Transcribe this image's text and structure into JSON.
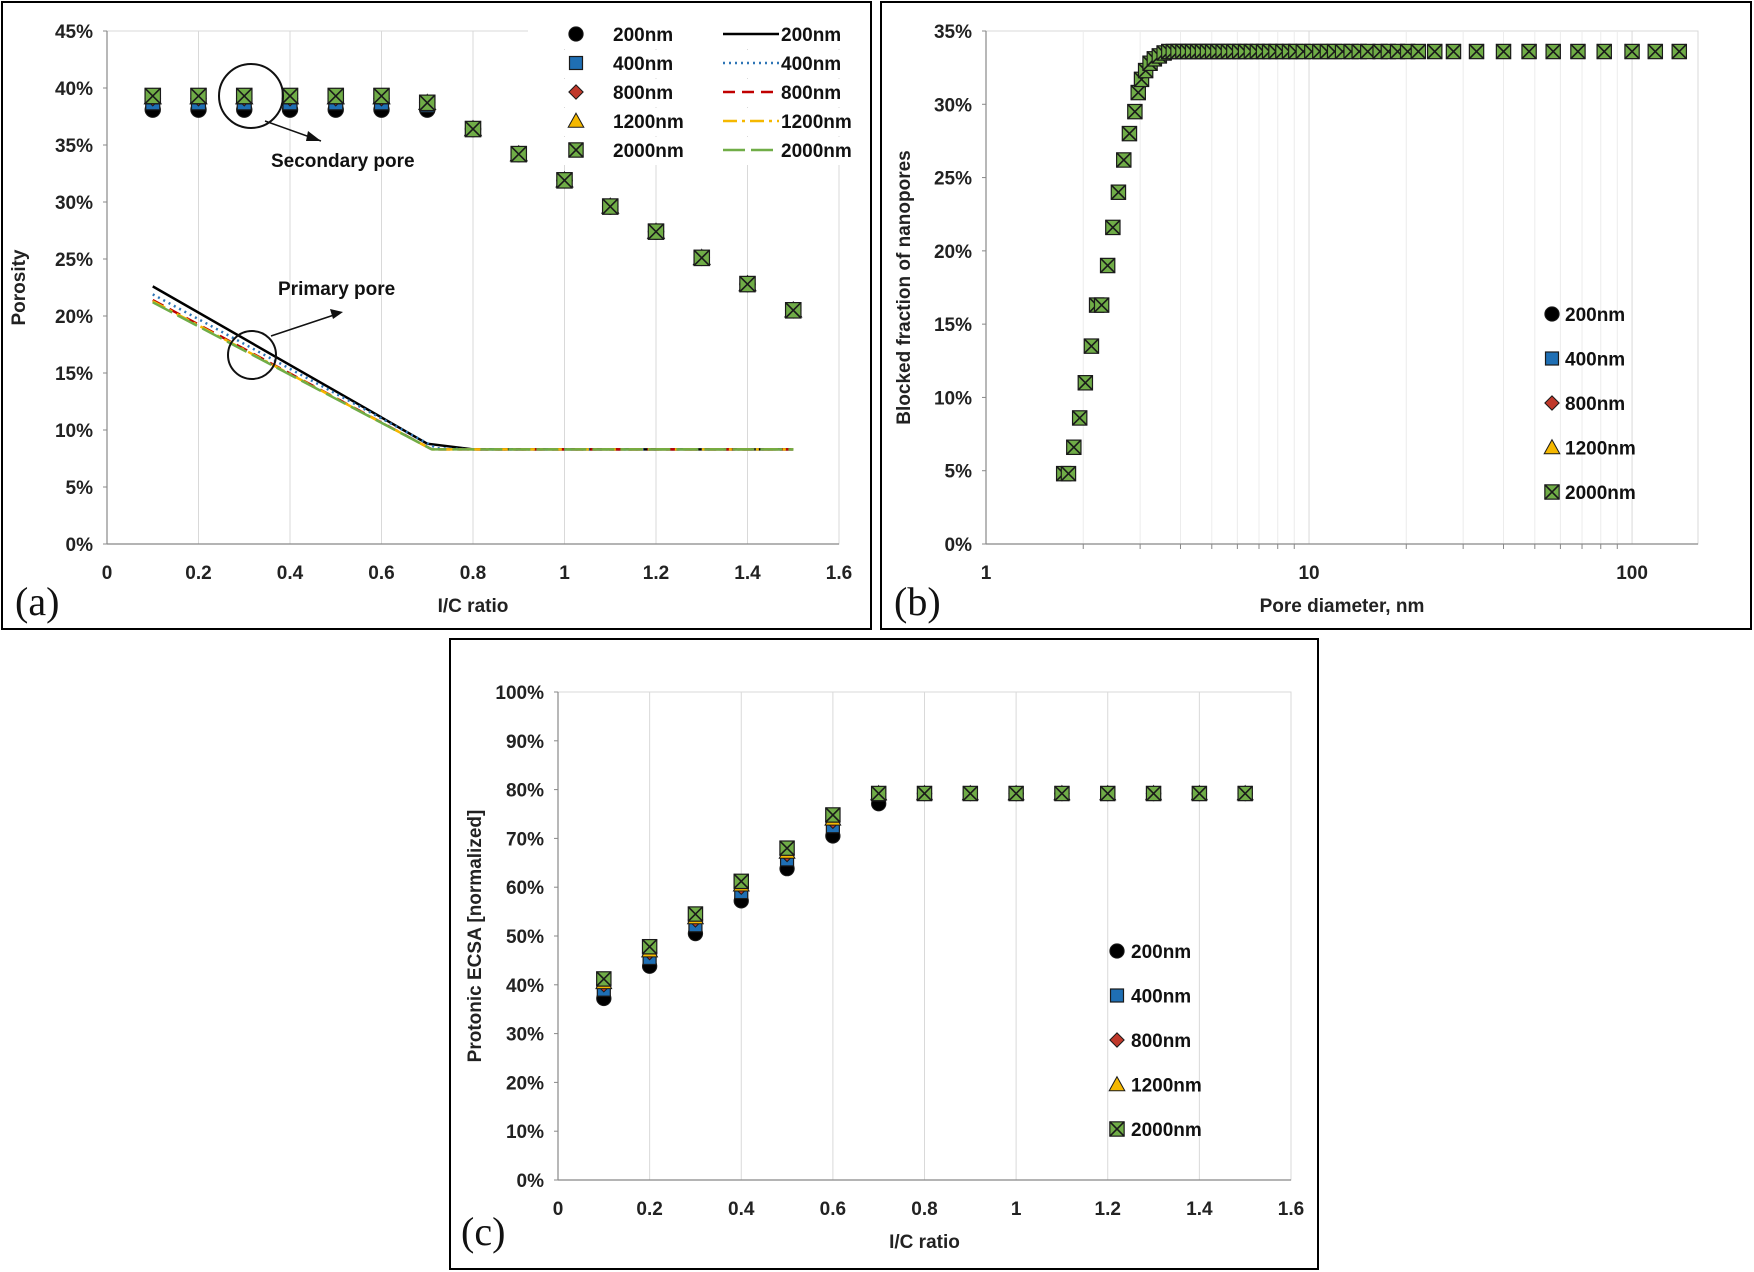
{
  "series_styles": {
    "200nm": {
      "marker": "circle",
      "fill": "#000000",
      "line_color": "#000000",
      "dash": ""
    },
    "400nm": {
      "marker": "square",
      "fill": "#1f6fb4",
      "line_color": "#2e75b6",
      "dash": "2,4"
    },
    "800nm": {
      "marker": "diamond",
      "fill": "#c0392b",
      "line_color": "#c00000",
      "dash": "12,7"
    },
    "1200nm": {
      "marker": "triangle",
      "fill": "#f5b800",
      "line_color": "#f5b800",
      "dash": "14,5,3,5"
    },
    "2000nm": {
      "marker": "xsquare",
      "fill": "#70ad47",
      "line_color": "#70ad47",
      "dash": "22,6"
    }
  },
  "chart_data": [
    {
      "id": "a",
      "type": "scatter",
      "panel_label": "(a)",
      "xlabel": "I/C ratio",
      "ylabel": "Porosity",
      "xlim": [
        0,
        1.6
      ],
      "ylim": [
        0,
        0.45
      ],
      "x_ticks": [
        "0",
        "0.2",
        "0.4",
        "0.6",
        "0.8",
        "1",
        "1.2",
        "1.4",
        "1.6"
      ],
      "y_ticks": [
        "0%",
        "5%",
        "10%",
        "15%",
        "20%",
        "25%",
        "30%",
        "35%",
        "40%",
        "45%"
      ],
      "grid": "vertical",
      "legend_position": "top-right",
      "annotations": [
        "Secondary pore",
        "Primary pore"
      ],
      "scatter_series": [
        {
          "name": "200nm",
          "x": [
            0.1,
            0.2,
            0.3,
            0.4,
            0.5,
            0.6,
            0.7,
            0.8,
            0.9,
            1.0,
            1.1,
            1.2,
            1.3,
            1.4,
            1.5
          ],
          "y": [
            0.381,
            0.381,
            0.381,
            0.381,
            0.381,
            0.381,
            0.381,
            0.364,
            0.342,
            0.319,
            0.296,
            0.274,
            0.251,
            0.228,
            0.205
          ]
        },
        {
          "name": "400nm",
          "x": [
            0.1,
            0.2,
            0.3,
            0.4,
            0.5,
            0.6,
            0.7,
            0.8,
            0.9,
            1.0,
            1.1,
            1.2,
            1.3,
            1.4,
            1.5
          ],
          "y": [
            0.387,
            0.387,
            0.387,
            0.387,
            0.387,
            0.387,
            0.385,
            0.364,
            0.342,
            0.319,
            0.296,
            0.274,
            0.251,
            0.228,
            0.205
          ]
        },
        {
          "name": "800nm",
          "x": [
            0.1,
            0.2,
            0.3,
            0.4,
            0.5,
            0.6,
            0.7,
            0.8,
            0.9,
            1.0,
            1.1,
            1.2,
            1.3,
            1.4,
            1.5
          ],
          "y": [
            0.391,
            0.391,
            0.391,
            0.391,
            0.391,
            0.391,
            0.387,
            0.364,
            0.342,
            0.319,
            0.296,
            0.274,
            0.251,
            0.228,
            0.205
          ]
        },
        {
          "name": "1200nm",
          "x": [
            0.1,
            0.2,
            0.3,
            0.4,
            0.5,
            0.6,
            0.7,
            0.8,
            0.9,
            1.0,
            1.1,
            1.2,
            1.3,
            1.4,
            1.5
          ],
          "y": [
            0.392,
            0.392,
            0.392,
            0.392,
            0.392,
            0.392,
            0.387,
            0.364,
            0.342,
            0.319,
            0.296,
            0.274,
            0.251,
            0.228,
            0.205
          ]
        },
        {
          "name": "2000nm",
          "x": [
            0.1,
            0.2,
            0.3,
            0.4,
            0.5,
            0.6,
            0.7,
            0.8,
            0.9,
            1.0,
            1.1,
            1.2,
            1.3,
            1.4,
            1.5
          ],
          "y": [
            0.393,
            0.393,
            0.393,
            0.393,
            0.393,
            0.393,
            0.387,
            0.364,
            0.342,
            0.319,
            0.296,
            0.274,
            0.251,
            0.228,
            0.205
          ]
        }
      ],
      "line_series": [
        {
          "name": "200nm",
          "x": [
            0.1,
            0.7,
            0.8,
            1.5
          ],
          "y": [
            0.226,
            0.088,
            0.083,
            0.083
          ]
        },
        {
          "name": "400nm",
          "x": [
            0.1,
            0.72,
            0.8,
            1.5
          ],
          "y": [
            0.219,
            0.084,
            0.083,
            0.083
          ]
        },
        {
          "name": "800nm",
          "x": [
            0.1,
            0.71,
            1.5
          ],
          "y": [
            0.214,
            0.083,
            0.083
          ]
        },
        {
          "name": "1200nm",
          "x": [
            0.1,
            0.71,
            1.5
          ],
          "y": [
            0.213,
            0.083,
            0.083
          ]
        },
        {
          "name": "2000nm",
          "x": [
            0.1,
            0.71,
            1.5
          ],
          "y": [
            0.212,
            0.083,
            0.083
          ]
        }
      ],
      "legend_markers": [
        "200nm",
        "400nm",
        "800nm",
        "1200nm",
        "2000nm"
      ],
      "legend_lines": [
        "200nm",
        "400nm",
        "800nm",
        "1200nm",
        "2000nm"
      ]
    },
    {
      "id": "b",
      "type": "scatter",
      "panel_label": "(b)",
      "xlabel": "Pore diameter, nm",
      "ylabel": "Blocked fraction of nanopores",
      "xscale": "log",
      "xlim": [
        1,
        160
      ],
      "ylim": [
        0,
        0.35
      ],
      "x_ticks": [
        "1",
        "10",
        "100"
      ],
      "y_ticks": [
        "0%",
        "5%",
        "10%",
        "15%",
        "20%",
        "25%",
        "30%",
        "35%"
      ],
      "grid": "vertical",
      "legend_position": "right",
      "legend_markers": [
        "200nm",
        "400nm",
        "800nm",
        "1200nm",
        "2000nm"
      ],
      "x": [
        1.74,
        1.8,
        1.87,
        1.95,
        2.03,
        2.12,
        2.2,
        2.28,
        2.38,
        2.47,
        2.57,
        2.67,
        2.78,
        2.89,
        2.96,
        3.03,
        3.12,
        3.22,
        3.32,
        3.44,
        3.56,
        3.68,
        3.8,
        3.93,
        4.07,
        4.21,
        4.36,
        4.52,
        4.68,
        4.85,
        5.03,
        5.22,
        5.42,
        5.63,
        5.85,
        6.1,
        6.36,
        6.63,
        6.92,
        7.23,
        7.55,
        7.9,
        8.3,
        8.7,
        9.1,
        9.6,
        10.2,
        10.8,
        11.4,
        12.0,
        12.7,
        13.5,
        14.3,
        15.2,
        16.6,
        17.6,
        18.8,
        20.2,
        21.8,
        24.5,
        28.0,
        33.0,
        40.0,
        48.0,
        57.0,
        68.0,
        82.0,
        100.0,
        118.0,
        140.0
      ],
      "y": [
        0.048,
        0.048,
        0.066,
        0.086,
        0.11,
        0.135,
        0.163,
        0.163,
        0.19,
        0.216,
        0.24,
        0.262,
        0.28,
        0.295,
        0.308,
        0.317,
        0.323,
        0.328,
        0.331,
        0.333,
        0.335,
        0.336,
        0.336,
        0.336,
        0.336,
        0.336,
        0.336,
        0.336,
        0.336,
        0.336,
        0.336,
        0.336,
        0.336,
        0.336,
        0.336,
        0.336,
        0.336,
        0.336,
        0.336,
        0.336,
        0.336,
        0.336,
        0.336,
        0.336,
        0.336,
        0.336,
        0.336,
        0.336,
        0.336,
        0.336,
        0.336,
        0.336,
        0.336,
        0.336,
        0.336,
        0.336,
        0.336,
        0.336,
        0.336,
        0.336,
        0.336,
        0.336,
        0.336,
        0.336,
        0.336,
        0.336,
        0.336,
        0.336,
        0.336,
        0.336
      ]
    },
    {
      "id": "c",
      "type": "scatter",
      "panel_label": "(c)",
      "xlabel": "I/C ratio",
      "ylabel": "Protonic ECSA [normalized]",
      "xlim": [
        0,
        1.6
      ],
      "ylim": [
        0,
        1.0
      ],
      "x_ticks": [
        "0",
        "0.2",
        "0.4",
        "0.6",
        "0.8",
        "1",
        "1.2",
        "1.4",
        "1.6"
      ],
      "y_ticks": [
        "0%",
        "10%",
        "20%",
        "30%",
        "40%",
        "50%",
        "60%",
        "70%",
        "80%",
        "90%",
        "100%"
      ],
      "grid": "vertical",
      "legend_position": "right",
      "legend_markers": [
        "200nm",
        "400nm",
        "800nm",
        "1200nm",
        "2000nm"
      ],
      "scatter_series": [
        {
          "name": "200nm",
          "x": [
            0.1,
            0.2,
            0.3,
            0.4,
            0.5,
            0.6,
            0.7,
            0.8,
            0.9,
            1.0,
            1.1,
            1.2,
            1.3,
            1.4,
            1.5
          ],
          "y": [
            0.372,
            0.438,
            0.505,
            0.572,
            0.638,
            0.705,
            0.771,
            0.792,
            0.792,
            0.792,
            0.792,
            0.792,
            0.792,
            0.792,
            0.792
          ]
        },
        {
          "name": "400nm",
          "x": [
            0.1,
            0.2,
            0.3,
            0.4,
            0.5,
            0.6,
            0.7,
            0.8,
            0.9,
            1.0,
            1.1,
            1.2,
            1.3,
            1.4,
            1.5
          ],
          "y": [
            0.39,
            0.455,
            0.522,
            0.59,
            0.657,
            0.725,
            0.79,
            0.792,
            0.792,
            0.792,
            0.792,
            0.792,
            0.792,
            0.792,
            0.792
          ]
        },
        {
          "name": "800nm",
          "x": [
            0.1,
            0.2,
            0.3,
            0.4,
            0.5,
            0.6,
            0.7,
            0.8,
            0.9,
            1.0,
            1.1,
            1.2,
            1.3,
            1.4,
            1.5
          ],
          "y": [
            0.4,
            0.466,
            0.533,
            0.6,
            0.667,
            0.735,
            0.792,
            0.792,
            0.792,
            0.792,
            0.792,
            0.792,
            0.792,
            0.792,
            0.792
          ]
        },
        {
          "name": "1200nm",
          "x": [
            0.1,
            0.2,
            0.3,
            0.4,
            0.5,
            0.6,
            0.7,
            0.8,
            0.9,
            1.0,
            1.1,
            1.2,
            1.3,
            1.4,
            1.5
          ],
          "y": [
            0.405,
            0.47,
            0.538,
            0.605,
            0.672,
            0.74,
            0.792,
            0.792,
            0.792,
            0.792,
            0.792,
            0.792,
            0.792,
            0.792,
            0.792
          ]
        },
        {
          "name": "2000nm",
          "x": [
            0.1,
            0.2,
            0.3,
            0.4,
            0.5,
            0.6,
            0.7,
            0.8,
            0.9,
            1.0,
            1.1,
            1.2,
            1.3,
            1.4,
            1.5
          ],
          "y": [
            0.412,
            0.478,
            0.545,
            0.612,
            0.68,
            0.748,
            0.792,
            0.792,
            0.792,
            0.792,
            0.792,
            0.792,
            0.792,
            0.792,
            0.792
          ]
        }
      ]
    }
  ]
}
